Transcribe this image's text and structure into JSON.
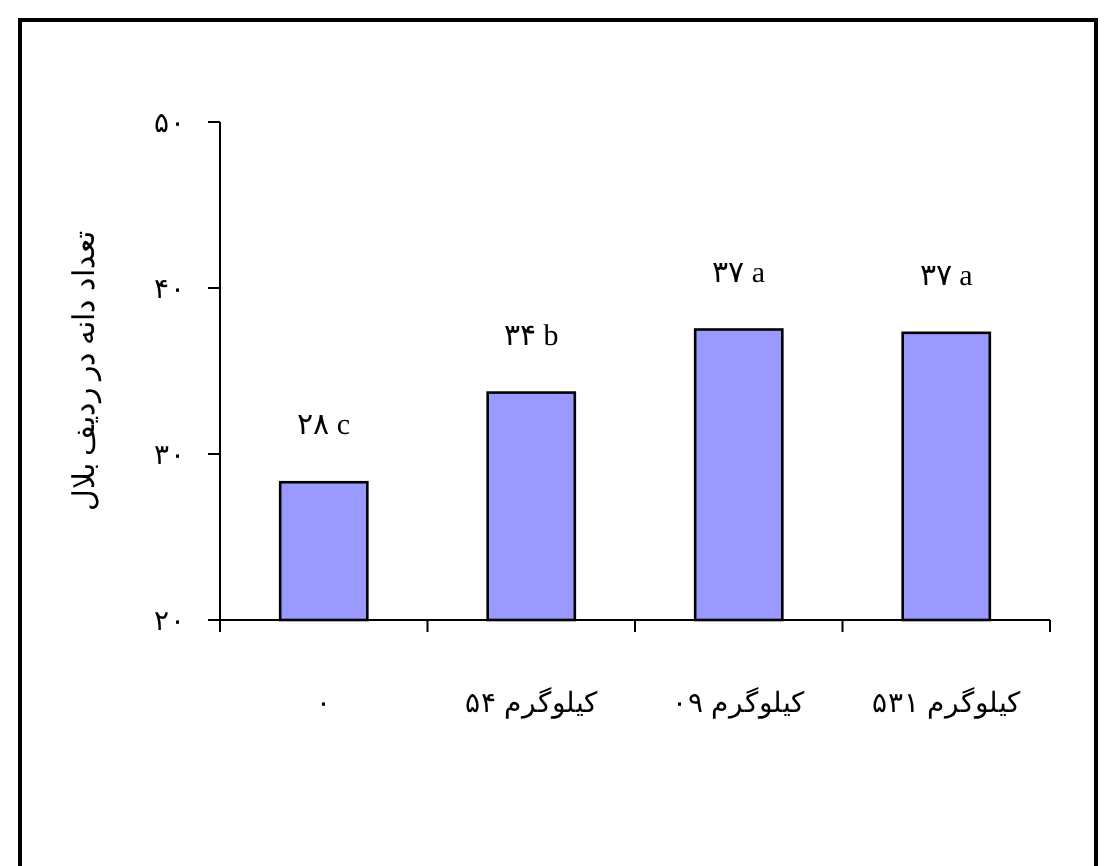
{
  "chart_data": {
    "type": "bar",
    "ylabel": "تعداد دانه در ردیف بلال",
    "categories": [
      "۰",
      "کیلوگرم ۵۴",
      "کیلوگرم ۰۹",
      "کیلوگرم ۵۳۱"
    ],
    "values": [
      28.3,
      33.7,
      37.5,
      37.3
    ],
    "color": "#9999ff",
    "value_labels": [
      "۲۸ c",
      "۳۴ b",
      "۳۷ a",
      "۳۷ a"
    ],
    "ylim": [
      20,
      50
    ],
    "yticks": [
      {
        "value": 20,
        "label": "۲۰"
      },
      {
        "value": 30,
        "label": "۳۰"
      },
      {
        "value": 40,
        "label": "۴۰"
      },
      {
        "value": 50,
        "label": "۵۰"
      }
    ],
    "grid": false
  }
}
